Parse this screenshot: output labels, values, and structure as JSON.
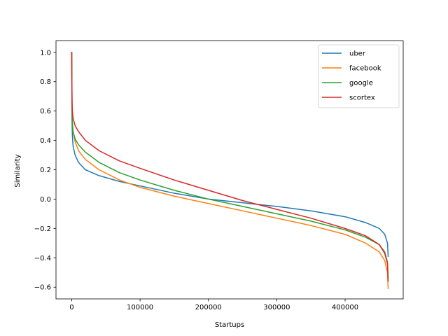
{
  "chart_data": {
    "type": "line",
    "xlabel": "Startups",
    "ylabel": "Similarity",
    "xlim": [
      -23000,
      485000
    ],
    "ylim": [
      -0.68,
      1.08
    ],
    "xticks": [
      0,
      100000,
      200000,
      300000,
      400000
    ],
    "xtick_labels": [
      "0",
      "100000",
      "200000",
      "300000",
      "400000"
    ],
    "yticks": [
      -0.6,
      -0.4,
      -0.2,
      0.0,
      0.2,
      0.4,
      0.6,
      0.8,
      1.0
    ],
    "ytick_labels": [
      "−0.6",
      "−0.4",
      "−0.2",
      "0.0",
      "0.2",
      "0.4",
      "0.6",
      "0.8",
      "1.0"
    ],
    "grid": false,
    "legend_position": "top-right",
    "series": [
      {
        "name": "uber",
        "color": "#1f77b4",
        "x": [
          0,
          500,
          1000,
          2000,
          5000,
          10000,
          20000,
          40000,
          70000,
          100000,
          150000,
          200000,
          250000,
          300000,
          350000,
          400000,
          430000,
          450000,
          458000,
          462000,
          463000
        ],
        "y": [
          1.0,
          0.52,
          0.43,
          0.36,
          0.3,
          0.25,
          0.2,
          0.16,
          0.12,
          0.09,
          0.04,
          0.0,
          -0.025,
          -0.05,
          -0.08,
          -0.12,
          -0.16,
          -0.2,
          -0.24,
          -0.3,
          -0.39
        ]
      },
      {
        "name": "facebook",
        "color": "#ff7f0e",
        "x": [
          0,
          500,
          1000,
          2000,
          5000,
          10000,
          20000,
          40000,
          70000,
          100000,
          150000,
          200000,
          250000,
          300000,
          350000,
          400000,
          430000,
          450000,
          458000,
          462000,
          463000
        ],
        "y": [
          1.0,
          0.6,
          0.52,
          0.46,
          0.39,
          0.33,
          0.27,
          0.2,
          0.13,
          0.08,
          0.02,
          -0.03,
          -0.08,
          -0.13,
          -0.18,
          -0.24,
          -0.3,
          -0.36,
          -0.42,
          -0.5,
          -0.61
        ]
      },
      {
        "name": "google",
        "color": "#2ca02c",
        "x": [
          0,
          500,
          1000,
          2000,
          5000,
          10000,
          20000,
          40000,
          70000,
          100000,
          150000,
          200000,
          250000,
          300000,
          350000,
          400000,
          430000,
          450000,
          458000,
          462000,
          463000
        ],
        "y": [
          1.0,
          0.58,
          0.51,
          0.46,
          0.41,
          0.37,
          0.32,
          0.25,
          0.18,
          0.13,
          0.06,
          0.0,
          -0.05,
          -0.1,
          -0.15,
          -0.21,
          -0.26,
          -0.31,
          -0.36,
          -0.43,
          -0.54
        ]
      },
      {
        "name": "scortex",
        "color": "#d62728",
        "x": [
          0,
          500,
          1000,
          2000,
          5000,
          10000,
          20000,
          40000,
          70000,
          100000,
          150000,
          200000,
          250000,
          300000,
          350000,
          400000,
          430000,
          450000,
          458000,
          462000,
          463000
        ],
        "y": [
          1.0,
          0.66,
          0.6,
          0.55,
          0.5,
          0.46,
          0.4,
          0.33,
          0.26,
          0.21,
          0.13,
          0.06,
          -0.01,
          -0.07,
          -0.13,
          -0.2,
          -0.25,
          -0.31,
          -0.37,
          -0.44,
          -0.56
        ]
      }
    ]
  }
}
